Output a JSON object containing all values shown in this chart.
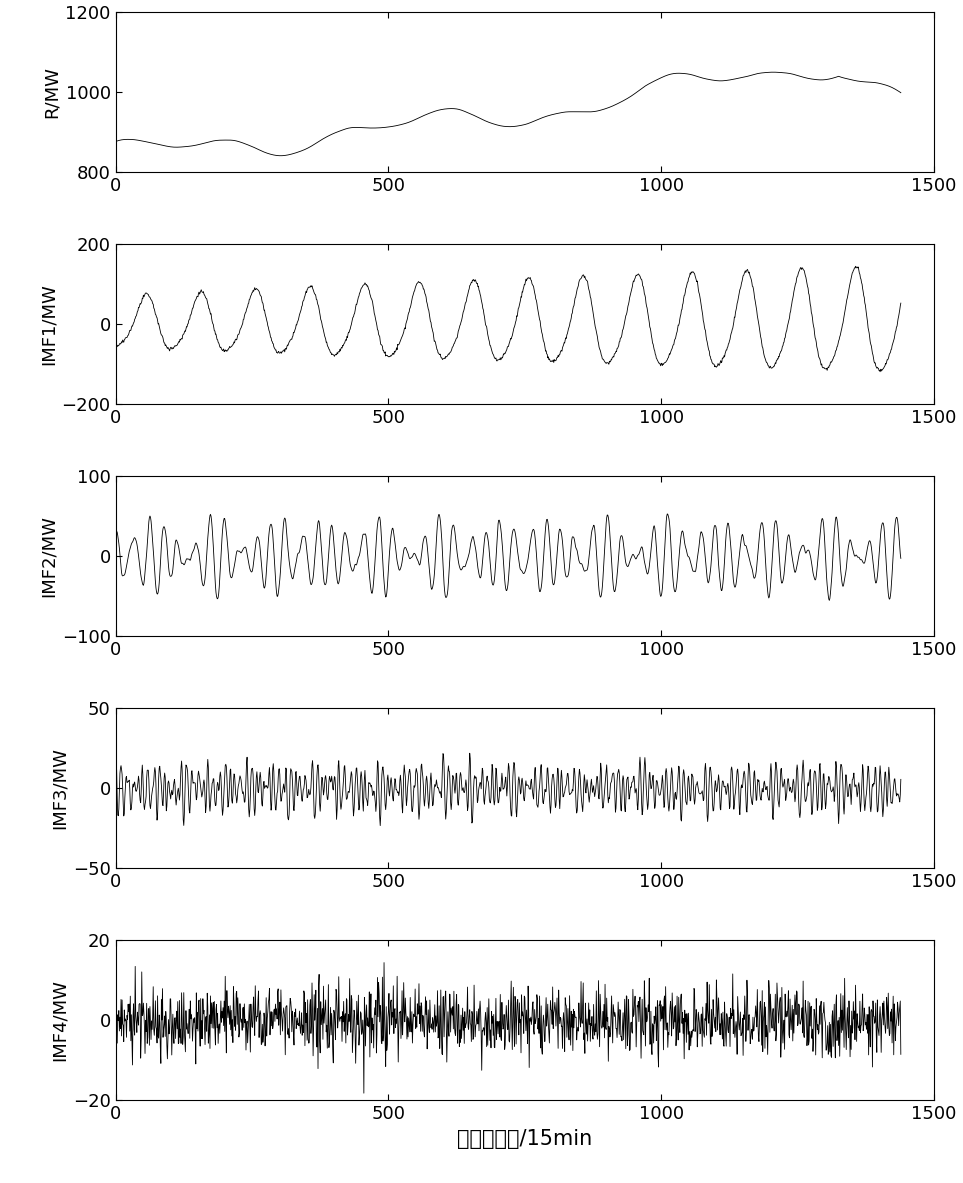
{
  "n_points": 1440,
  "xlim": [
    0,
    1500
  ],
  "xticks": [
    0,
    500,
    1000,
    1500
  ],
  "subplots": [
    {
      "ylabel": "R/MW",
      "ylim": [
        800,
        1200
      ],
      "yticks": [
        800,
        1000,
        1200
      ]
    },
    {
      "ylabel": "IMF1/MW",
      "ylim": [
        -200,
        200
      ],
      "yticks": [
        -200,
        0,
        200
      ]
    },
    {
      "ylabel": "IMF2/MW",
      "ylim": [
        -100,
        100
      ],
      "yticks": [
        -100,
        0,
        100
      ]
    },
    {
      "ylabel": "IMF3/MW",
      "ylim": [
        -50,
        50
      ],
      "yticks": [
        -50,
        0,
        50
      ]
    },
    {
      "ylabel": "IMF4/MW",
      "ylim": [
        -20,
        20
      ],
      "yticks": [
        -20,
        0,
        20
      ]
    }
  ],
  "xlabel": "时间采样点/15min",
  "line_color": "#000000",
  "line_width": 0.6,
  "bg_color": "#ffffff",
  "figsize": [
    9.63,
    11.83
  ],
  "dpi": 100,
  "ylabel_fontsize": 13,
  "xlabel_fontsize": 15,
  "tick_labelsize": 13
}
